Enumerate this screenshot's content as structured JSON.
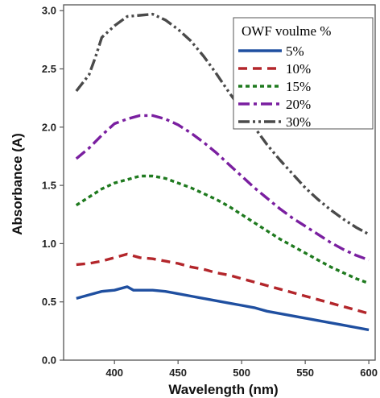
{
  "chart_data": {
    "type": "line",
    "title": "",
    "xlabel": "Wavelength (nm)",
    "ylabel": "Absorbance (A)",
    "xlim": [
      360,
      605
    ],
    "ylim": [
      0,
      3.05
    ],
    "xticks": [
      400,
      450,
      500,
      550,
      600
    ],
    "yticks": [
      0.0,
      0.5,
      1.0,
      1.5,
      2.0,
      2.5,
      3.0
    ],
    "xtick_labels": [
      "400",
      "450",
      "500",
      "550",
      "600"
    ],
    "ytick_labels": [
      "0.0",
      "0.5",
      "1.0",
      "1.5",
      "2.0",
      "2.5",
      "3.0"
    ],
    "grid": false,
    "legend": {
      "title": "OWF voulme %",
      "position": "top-right"
    },
    "series": [
      {
        "name": "5%",
        "color": "#1f4fa0",
        "dash": "solid",
        "points": [
          [
            370,
            0.53
          ],
          [
            380,
            0.56
          ],
          [
            390,
            0.59
          ],
          [
            400,
            0.6
          ],
          [
            410,
            0.63
          ],
          [
            415,
            0.6
          ],
          [
            420,
            0.6
          ],
          [
            430,
            0.6
          ],
          [
            440,
            0.59
          ],
          [
            450,
            0.57
          ],
          [
            460,
            0.55
          ],
          [
            470,
            0.53
          ],
          [
            480,
            0.51
          ],
          [
            490,
            0.49
          ],
          [
            500,
            0.47
          ],
          [
            510,
            0.45
          ],
          [
            520,
            0.42
          ],
          [
            530,
            0.4
          ],
          [
            540,
            0.38
          ],
          [
            550,
            0.36
          ],
          [
            560,
            0.34
          ],
          [
            570,
            0.32
          ],
          [
            580,
            0.3
          ],
          [
            590,
            0.28
          ],
          [
            600,
            0.26
          ]
        ]
      },
      {
        "name": "10%",
        "color": "#b3262b",
        "dash": "dash",
        "points": [
          [
            370,
            0.82
          ],
          [
            380,
            0.83
          ],
          [
            390,
            0.85
          ],
          [
            400,
            0.88
          ],
          [
            410,
            0.91
          ],
          [
            420,
            0.88
          ],
          [
            430,
            0.87
          ],
          [
            440,
            0.85
          ],
          [
            450,
            0.83
          ],
          [
            460,
            0.8
          ],
          [
            470,
            0.78
          ],
          [
            480,
            0.75
          ],
          [
            490,
            0.73
          ],
          [
            500,
            0.7
          ],
          [
            510,
            0.67
          ],
          [
            520,
            0.64
          ],
          [
            530,
            0.61
          ],
          [
            540,
            0.58
          ],
          [
            550,
            0.55
          ],
          [
            560,
            0.52
          ],
          [
            570,
            0.49
          ],
          [
            580,
            0.46
          ],
          [
            590,
            0.43
          ],
          [
            600,
            0.4
          ]
        ]
      },
      {
        "name": "15%",
        "color": "#1f7a1f",
        "dash": "dot",
        "points": [
          [
            370,
            1.33
          ],
          [
            380,
            1.4
          ],
          [
            390,
            1.47
          ],
          [
            400,
            1.52
          ],
          [
            410,
            1.55
          ],
          [
            420,
            1.58
          ],
          [
            430,
            1.58
          ],
          [
            440,
            1.56
          ],
          [
            450,
            1.52
          ],
          [
            460,
            1.48
          ],
          [
            470,
            1.43
          ],
          [
            480,
            1.38
          ],
          [
            490,
            1.32
          ],
          [
            500,
            1.25
          ],
          [
            510,
            1.18
          ],
          [
            520,
            1.11
          ],
          [
            530,
            1.04
          ],
          [
            540,
            0.98
          ],
          [
            550,
            0.92
          ],
          [
            560,
            0.86
          ],
          [
            570,
            0.8
          ],
          [
            580,
            0.75
          ],
          [
            590,
            0.7
          ],
          [
            600,
            0.66
          ]
        ]
      },
      {
        "name": "20%",
        "color": "#7a1fa0",
        "dash": "dashdot",
        "points": [
          [
            370,
            1.73
          ],
          [
            380,
            1.82
          ],
          [
            390,
            1.93
          ],
          [
            400,
            2.03
          ],
          [
            410,
            2.07
          ],
          [
            420,
            2.1
          ],
          [
            430,
            2.1
          ],
          [
            440,
            2.07
          ],
          [
            450,
            2.02
          ],
          [
            460,
            1.95
          ],
          [
            470,
            1.87
          ],
          [
            480,
            1.78
          ],
          [
            490,
            1.68
          ],
          [
            500,
            1.58
          ],
          [
            510,
            1.48
          ],
          [
            520,
            1.39
          ],
          [
            530,
            1.3
          ],
          [
            540,
            1.22
          ],
          [
            550,
            1.15
          ],
          [
            560,
            1.08
          ],
          [
            570,
            1.01
          ],
          [
            580,
            0.95
          ],
          [
            590,
            0.9
          ],
          [
            600,
            0.86
          ]
        ]
      },
      {
        "name": "30%",
        "color": "#4a4a4a",
        "dash": "dashdotdot",
        "points": [
          [
            370,
            2.31
          ],
          [
            380,
            2.45
          ],
          [
            385,
            2.6
          ],
          [
            390,
            2.77
          ],
          [
            400,
            2.87
          ],
          [
            410,
            2.95
          ],
          [
            420,
            2.96
          ],
          [
            430,
            2.97
          ],
          [
            440,
            2.92
          ],
          [
            450,
            2.84
          ],
          [
            460,
            2.74
          ],
          [
            470,
            2.61
          ],
          [
            480,
            2.46
          ],
          [
            490,
            2.3
          ],
          [
            500,
            2.15
          ],
          [
            510,
            2.0
          ],
          [
            520,
            1.85
          ],
          [
            530,
            1.72
          ],
          [
            540,
            1.6
          ],
          [
            550,
            1.48
          ],
          [
            560,
            1.38
          ],
          [
            570,
            1.29
          ],
          [
            580,
            1.21
          ],
          [
            590,
            1.14
          ],
          [
            600,
            1.08
          ]
        ]
      }
    ]
  }
}
